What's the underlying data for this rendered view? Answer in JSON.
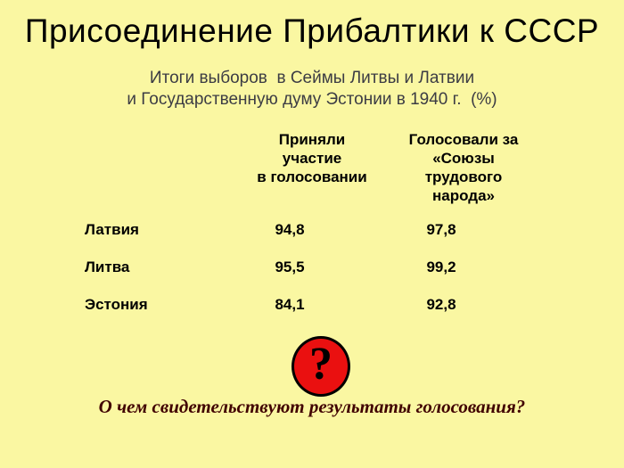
{
  "slide": {
    "title": "Присоединение Прибалтики к СССР",
    "subtitle_line1": "Итоги выборов  в Сеймы Литвы и Латвии",
    "subtitle_line2": "и Государственную думу Эстонии в 1940 г.  (%)",
    "question_mark": "?",
    "question": "О чем свидетельствуют результаты голосования?"
  },
  "table": {
    "col_header_turnout": "Приняли\nучастие\nв голосовании",
    "col_header_vote": "Голосовали за\n«Союзы\nтрудового\nнарода»",
    "rows": [
      {
        "label": "Латвия",
        "turnout": "94,8",
        "vote": "97,8"
      },
      {
        "label": "Литва",
        "turnout": "95,5",
        "vote": "99,2"
      },
      {
        "label": "Эстония",
        "turnout": "84,1",
        "vote": "92,8"
      }
    ]
  },
  "colors": {
    "background": "#faf7a2",
    "title": "#000000",
    "subtitle": "#3c3c44",
    "table_text": "#000000",
    "question_badge_fill": "#ea1010",
    "question_badge_border": "#000000",
    "question_text": "#400000"
  }
}
